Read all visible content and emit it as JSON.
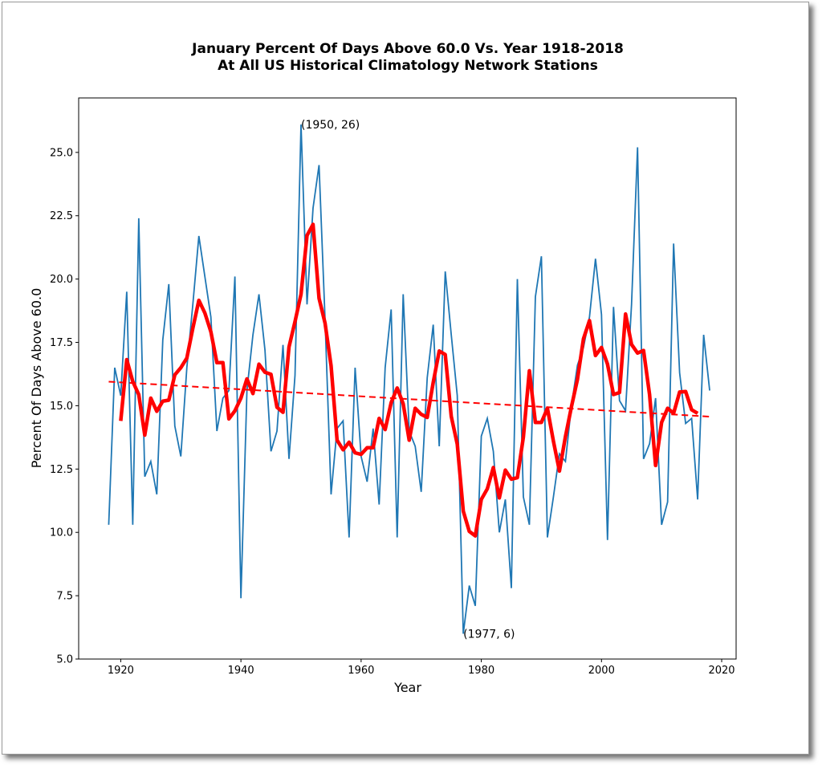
{
  "chart_data": {
    "type": "line",
    "title": "January Percent Of Days Above 60.0 Vs. Year 1918-2018",
    "subtitle": "At All US Historical Climatology Network Stations",
    "xlabel": "Year",
    "ylabel": "Percent Of Days Above 60.0",
    "xlim": [
      1913,
      2022.4
    ],
    "ylim": [
      5.0,
      27.15
    ],
    "xticks": [
      "1920",
      "1940",
      "1960",
      "1980",
      "2000",
      "2020"
    ],
    "yticks": [
      "5.0",
      "7.5",
      "10.0",
      "12.5",
      "15.0",
      "17.5",
      "20.0",
      "22.5",
      "25.0"
    ],
    "grid": false,
    "colors": {
      "annual": "#1f77b4",
      "smoothed": "#ff0000",
      "trend": "#ff0000"
    },
    "x": [
      1918,
      1919,
      1920,
      1921,
      1922,
      1923,
      1924,
      1925,
      1926,
      1927,
      1928,
      1929,
      1930,
      1931,
      1932,
      1933,
      1934,
      1935,
      1936,
      1937,
      1938,
      1939,
      1940,
      1941,
      1942,
      1943,
      1944,
      1945,
      1946,
      1947,
      1948,
      1949,
      1950,
      1951,
      1952,
      1953,
      1954,
      1955,
      1956,
      1957,
      1958,
      1959,
      1960,
      1961,
      1962,
      1963,
      1964,
      1965,
      1966,
      1967,
      1968,
      1969,
      1970,
      1971,
      1972,
      1973,
      1974,
      1975,
      1976,
      1977,
      1978,
      1979,
      1980,
      1981,
      1982,
      1983,
      1984,
      1985,
      1986,
      1987,
      1988,
      1989,
      1990,
      1991,
      1992,
      1993,
      1994,
      1995,
      1996,
      1997,
      1998,
      1999,
      2000,
      2001,
      2002,
      2003,
      2004,
      2005,
      2006,
      2007,
      2008,
      2009,
      2010,
      2011,
      2012,
      2013,
      2014,
      2015,
      2016,
      2017,
      2018
    ],
    "series": [
      {
        "values": [
          10.3,
          16.5,
          15.4,
          19.5,
          10.3,
          22.4,
          12.2,
          12.8,
          11.5,
          17.6,
          19.8,
          14.2,
          13.0,
          16.5,
          19.0,
          21.7,
          20.1,
          18.5,
          14.0,
          15.3,
          15.6,
          20.1,
          7.4,
          15.6,
          17.8,
          19.4,
          17.2,
          13.2,
          14.0,
          17.4,
          12.9,
          16.2,
          26.1,
          19.0,
          22.8,
          24.5,
          18.4,
          11.5,
          14.1,
          14.4,
          9.8,
          16.5,
          13.0,
          12.0,
          14.1,
          11.1,
          16.5,
          18.8,
          9.8,
          19.4,
          14.0,
          13.4,
          11.6,
          16.1,
          18.2,
          13.4,
          20.3,
          17.8,
          15.4,
          6.0,
          7.9,
          7.1,
          13.8,
          14.5,
          13.2,
          10.0,
          11.3,
          7.8,
          20.0,
          11.4,
          10.3,
          19.3,
          20.9,
          9.8,
          11.4,
          13.1,
          12.8,
          15.0,
          16.6,
          17.3,
          18.5,
          20.8,
          18.6,
          9.7,
          18.9,
          15.2,
          14.8,
          19.0,
          25.2,
          12.9,
          13.5,
          15.3,
          10.3,
          11.2,
          21.4,
          16.3,
          14.3,
          14.5,
          11.3,
          17.8,
          15.6
        ]
      }
    ],
    "smoothing_window": 5,
    "trend": {
      "x": [
        1918,
        2018
      ],
      "y": [
        15.95,
        14.57
      ]
    },
    "annotations": [
      {
        "text": "(1950, 26)",
        "x": 1950,
        "y": 26.1
      },
      {
        "text": "(1977, 6)",
        "x": 1977,
        "y": 6.0
      }
    ]
  }
}
